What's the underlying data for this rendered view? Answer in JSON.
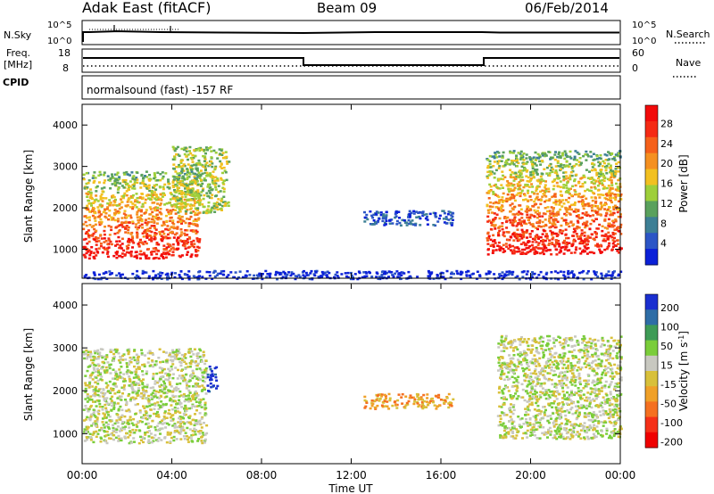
{
  "header": {
    "station": "Adak East (fitACF)",
    "beam": "Beam 09",
    "date": "06/Feb/2014"
  },
  "noise_panel": {
    "left_label": "N.Sky",
    "right_label": "N.Search",
    "left_ticks": [
      "10^5",
      "10^0"
    ],
    "right_ticks": [
      "10^5",
      "10^0"
    ]
  },
  "freq_panel": {
    "left_label_top": "Freq.",
    "left_label_bottom": "[MHz]",
    "right_label": "Nave",
    "left_ticks": [
      "18",
      "8"
    ],
    "right_ticks": [
      "60",
      "0"
    ]
  },
  "cpid_panel": {
    "label": "CPID",
    "program": "normalsound (fast) -157 RF"
  },
  "colors": {
    "power": [
      "#0b20d8",
      "#2c55c6",
      "#3d7f95",
      "#5aa15d",
      "#9ecf3a",
      "#f2c020",
      "#f59020",
      "#f5601a",
      "#f52a14",
      "#f20a0a"
    ],
    "velocity_labels_colors": [
      "#1a2fd0",
      "#2e6da6",
      "#3e9b56",
      "#7acd3a",
      "#c8c8c0",
      "#d8c03a",
      "#f0a028",
      "#f57020",
      "#f53018",
      "#f00000"
    ]
  },
  "chart_data": [
    {
      "type": "heatmap",
      "name": "power",
      "ylabel": "Slant Range [km]",
      "yticks": [
        1000,
        2000,
        3000,
        4000
      ],
      "ylim": [
        300,
        4500
      ],
      "colorbar_label": "Power [dB]",
      "colorbar_ticks": [
        4,
        8,
        12,
        16,
        20,
        24,
        28
      ],
      "regions": [
        {
          "t0": 0.0,
          "t1": 5.2,
          "r0": 800,
          "r1": 2900,
          "level": 8
        },
        {
          "t0": 4.0,
          "t1": 6.5,
          "r0": 1900,
          "r1": 3500,
          "level": 4
        },
        {
          "t0": 12.5,
          "t1": 16.5,
          "r0": 1600,
          "r1": 1950,
          "level": 1
        },
        {
          "t0": 18.0,
          "t1": 24.0,
          "r0": 900,
          "r1": 3400,
          "level": 7
        },
        {
          "t0": 0.0,
          "t1": 24.0,
          "r0": 300,
          "r1": 500,
          "level": 0
        }
      ]
    },
    {
      "type": "heatmap",
      "name": "velocity",
      "ylabel": "Slant Range [km]",
      "yticks": [
        1000,
        2000,
        3000,
        4000
      ],
      "ylim": [
        300,
        4500
      ],
      "xlabel": "Time UT",
      "xticks": [
        "00:00",
        "04:00",
        "08:00",
        "12:00",
        "16:00",
        "20:00",
        "00:00"
      ],
      "xlim": [
        0,
        24
      ],
      "colorbar_label": "Velocity [m s^-1]",
      "colorbar_ticks": [
        "200",
        "100",
        "50",
        "15",
        "-15",
        "-50",
        "-100",
        "-200"
      ],
      "regions": [
        {
          "t0": 0.0,
          "t1": 5.5,
          "r0": 800,
          "r1": 3000,
          "level": 4
        },
        {
          "t0": 5.5,
          "t1": 6.0,
          "r0": 2000,
          "r1": 2600,
          "level": 0
        },
        {
          "t0": 12.5,
          "t1": 16.5,
          "r0": 1600,
          "r1": 1950,
          "level": 6
        },
        {
          "t0": 18.5,
          "t1": 24.0,
          "r0": 900,
          "r1": 3300,
          "level": 4
        }
      ]
    }
  ]
}
